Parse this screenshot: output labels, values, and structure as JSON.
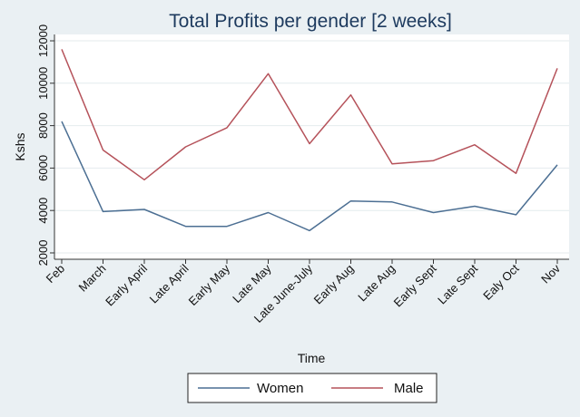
{
  "chart_data": {
    "type": "line",
    "title": "Total Profits per gender [2 weeks]",
    "xlabel": "Time",
    "ylabel": "Kshs",
    "categories": [
      "Feb",
      "March",
      "Early April",
      "Late April",
      "Early May",
      "Late May",
      "Late June-July",
      "Early Aug",
      "Late Aug",
      "Early Sept",
      "Late Sept",
      "Ealy Oct",
      "Nov"
    ],
    "yticks": [
      2000,
      4000,
      6000,
      8000,
      10000,
      12000
    ],
    "ylim": [
      1700,
      12300
    ],
    "grid": true,
    "legend_position": "bottom",
    "series": [
      {
        "name": "Women",
        "color": "#4c6f93",
        "values": [
          8200,
          3950,
          4050,
          3250,
          3250,
          3900,
          3050,
          4450,
          4400,
          3900,
          4200,
          3800,
          6150
        ]
      },
      {
        "name": "Male",
        "color": "#b5525a",
        "values": [
          11600,
          6850,
          5450,
          7000,
          7900,
          10450,
          7150,
          9450,
          6200,
          6350,
          7100,
          5750,
          10700
        ]
      }
    ]
  }
}
